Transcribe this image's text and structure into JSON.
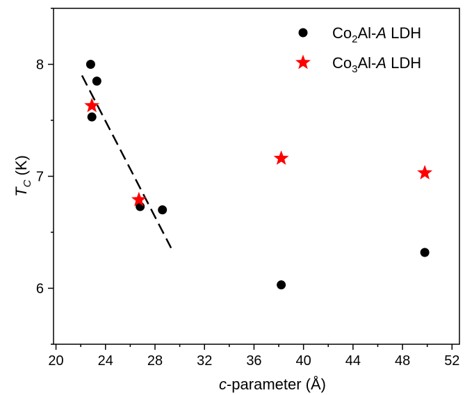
{
  "chart_data": {
    "type": "scatter",
    "x_axis": {
      "label_prefix": "c",
      "label_suffix": "-parameter (Å)",
      "range": [
        19.8,
        52.6
      ],
      "ticks": [
        20,
        24,
        28,
        32,
        36,
        40,
        44,
        48,
        52
      ],
      "tick_labels": [
        "20",
        "24",
        "28",
        "32",
        "36",
        "40",
        "44",
        "48",
        "52"
      ],
      "minor_ticks": [
        22,
        26,
        30,
        34,
        38,
        42,
        46,
        50
      ]
    },
    "y_axis": {
      "label_main": "T",
      "label_sub": "C",
      "label_unit": " (K)",
      "range": [
        5.5,
        8.5
      ],
      "ticks": [
        6,
        7,
        8
      ],
      "tick_labels": [
        "6",
        "7",
        "8"
      ],
      "minor_ticks": [
        5.5,
        6.5,
        7.5,
        8.5
      ]
    },
    "grid": false,
    "legend_position": "top-right",
    "series": [
      {
        "legend": {
          "pre": "Co",
          "sub": "2",
          "mid": "Al-",
          "ital": "A",
          "post": " LDH"
        },
        "marker": "circle",
        "color": "#000000",
        "points": [
          {
            "x": 22.8,
            "y": 8.0
          },
          {
            "x": 23.3,
            "y": 7.85
          },
          {
            "x": 22.9,
            "y": 7.53
          },
          {
            "x": 26.8,
            "y": 6.73
          },
          {
            "x": 28.6,
            "y": 6.7
          },
          {
            "x": 38.2,
            "y": 6.03
          },
          {
            "x": 49.8,
            "y": 6.32
          }
        ]
      },
      {
        "legend": {
          "pre": "Co",
          "sub": "3",
          "mid": "Al-",
          "ital": "A",
          "post": " LDH"
        },
        "marker": "star",
        "color": "#ff0000",
        "points": [
          {
            "x": 22.9,
            "y": 7.63
          },
          {
            "x": 26.7,
            "y": 6.79
          },
          {
            "x": 38.2,
            "y": 7.16
          },
          {
            "x": 49.8,
            "y": 7.03
          }
        ]
      }
    ],
    "trend_line": {
      "style": "dashed",
      "color": "#000000",
      "points": [
        {
          "x": 22.1,
          "y": 7.9
        },
        {
          "x": 29.3,
          "y": 6.36
        }
      ]
    }
  }
}
